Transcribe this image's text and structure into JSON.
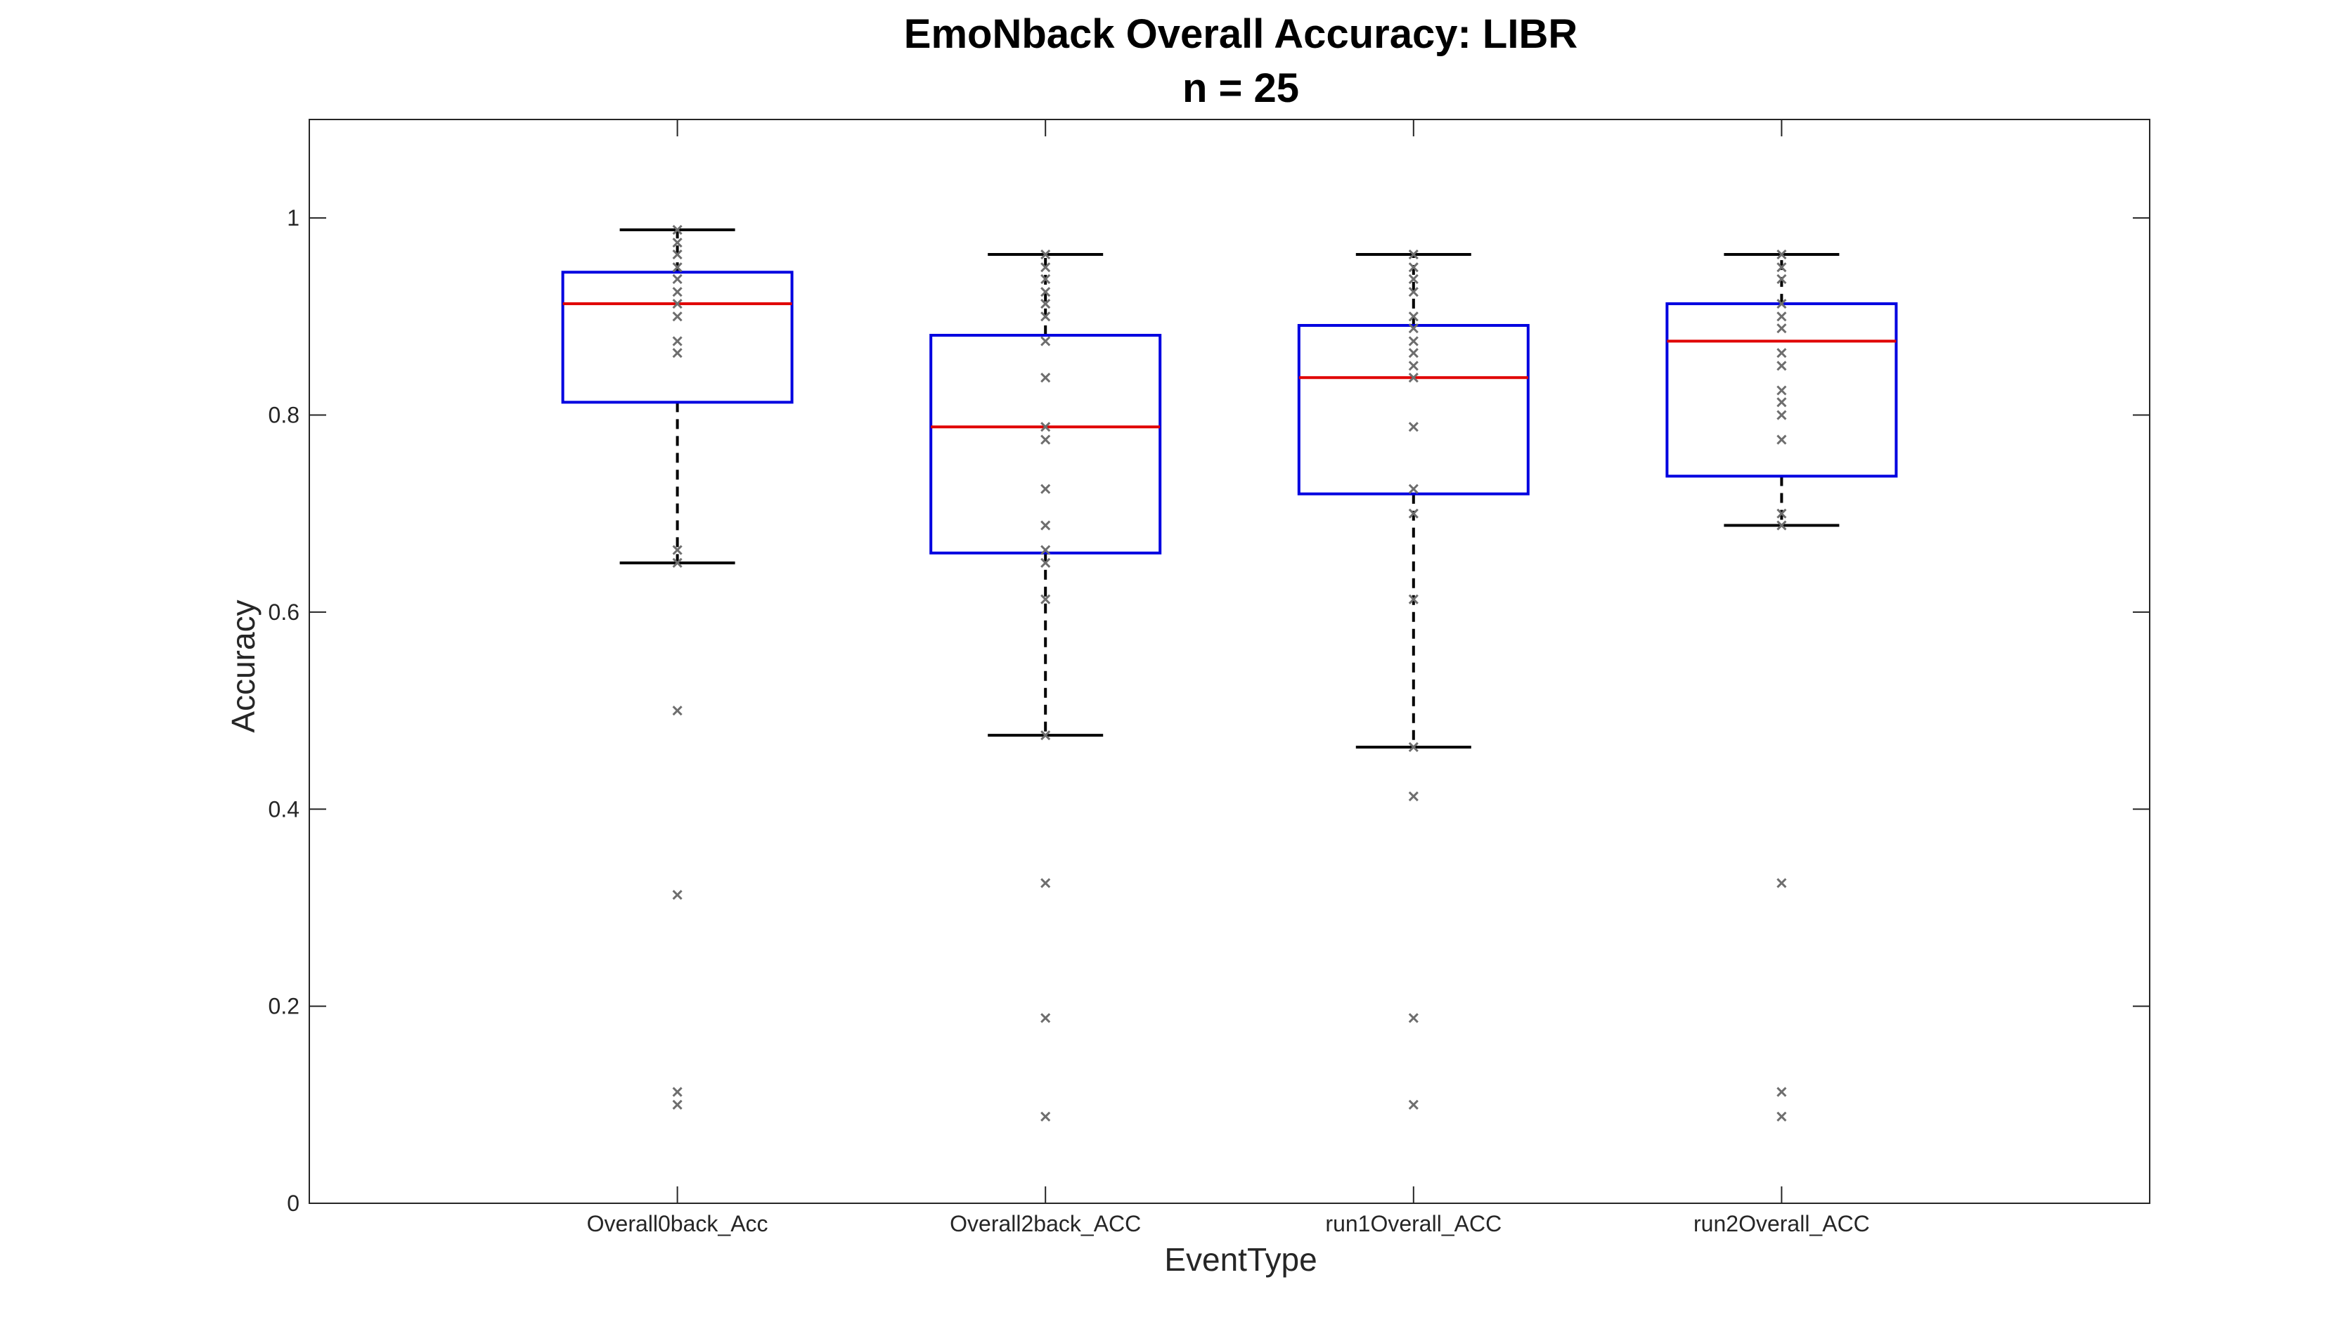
{
  "chart_data": {
    "type": "box",
    "title": "EmoNback Overall Accuracy: LIBR",
    "subtitle": "n = 25",
    "xlabel": "EventType",
    "ylabel": "Accuracy",
    "ylim": [
      0,
      1.1
    ],
    "yticks": [
      0,
      0.2,
      0.4,
      0.6,
      0.8,
      1
    ],
    "ytick_labels": [
      "0",
      "0.2",
      "0.4",
      "0.6",
      "0.8",
      "1"
    ],
    "grid": false,
    "categories": [
      "Overall0back_Acc",
      "Overall2back_ACC",
      "run1Overall_ACC",
      "run2Overall_ACC"
    ],
    "boxes": [
      {
        "category": "Overall0back_Acc",
        "whisker_low": 0.65,
        "q1": 0.813,
        "median": 0.913,
        "q3": 0.945,
        "whisker_high": 0.988,
        "points": [
          0.988,
          0.975,
          0.963,
          0.95,
          0.938,
          0.925,
          0.913,
          0.9,
          0.875,
          0.863,
          0.663,
          0.65,
          0.5,
          0.313,
          0.113,
          0.1
        ]
      },
      {
        "category": "Overall2back_ACC",
        "whisker_low": 0.475,
        "q1": 0.66,
        "median": 0.788,
        "q3": 0.881,
        "whisker_high": 0.963,
        "points": [
          0.963,
          0.95,
          0.938,
          0.925,
          0.913,
          0.9,
          0.875,
          0.838,
          0.788,
          0.775,
          0.725,
          0.688,
          0.663,
          0.65,
          0.613,
          0.475,
          0.325,
          0.188,
          0.088
        ]
      },
      {
        "category": "run1Overall_ACC",
        "whisker_low": 0.463,
        "q1": 0.72,
        "median": 0.838,
        "q3": 0.891,
        "whisker_high": 0.963,
        "points": [
          0.963,
          0.95,
          0.938,
          0.925,
          0.9,
          0.888,
          0.875,
          0.863,
          0.85,
          0.838,
          0.788,
          0.725,
          0.7,
          0.613,
          0.463,
          0.413,
          0.188,
          0.1
        ]
      },
      {
        "category": "run2Overall_ACC",
        "whisker_low": 0.688,
        "q1": 0.738,
        "median": 0.875,
        "q3": 0.913,
        "whisker_high": 0.963,
        "points": [
          0.963,
          0.95,
          0.938,
          0.913,
          0.9,
          0.888,
          0.863,
          0.85,
          0.825,
          0.813,
          0.8,
          0.775,
          0.7,
          0.688,
          0.325,
          0.113,
          0.088
        ]
      }
    ],
    "colors": {
      "box": "#0000e0",
      "median": "#e00000",
      "whisker": "#000000",
      "points": "#6e6e6e",
      "axes": "#262626"
    }
  }
}
